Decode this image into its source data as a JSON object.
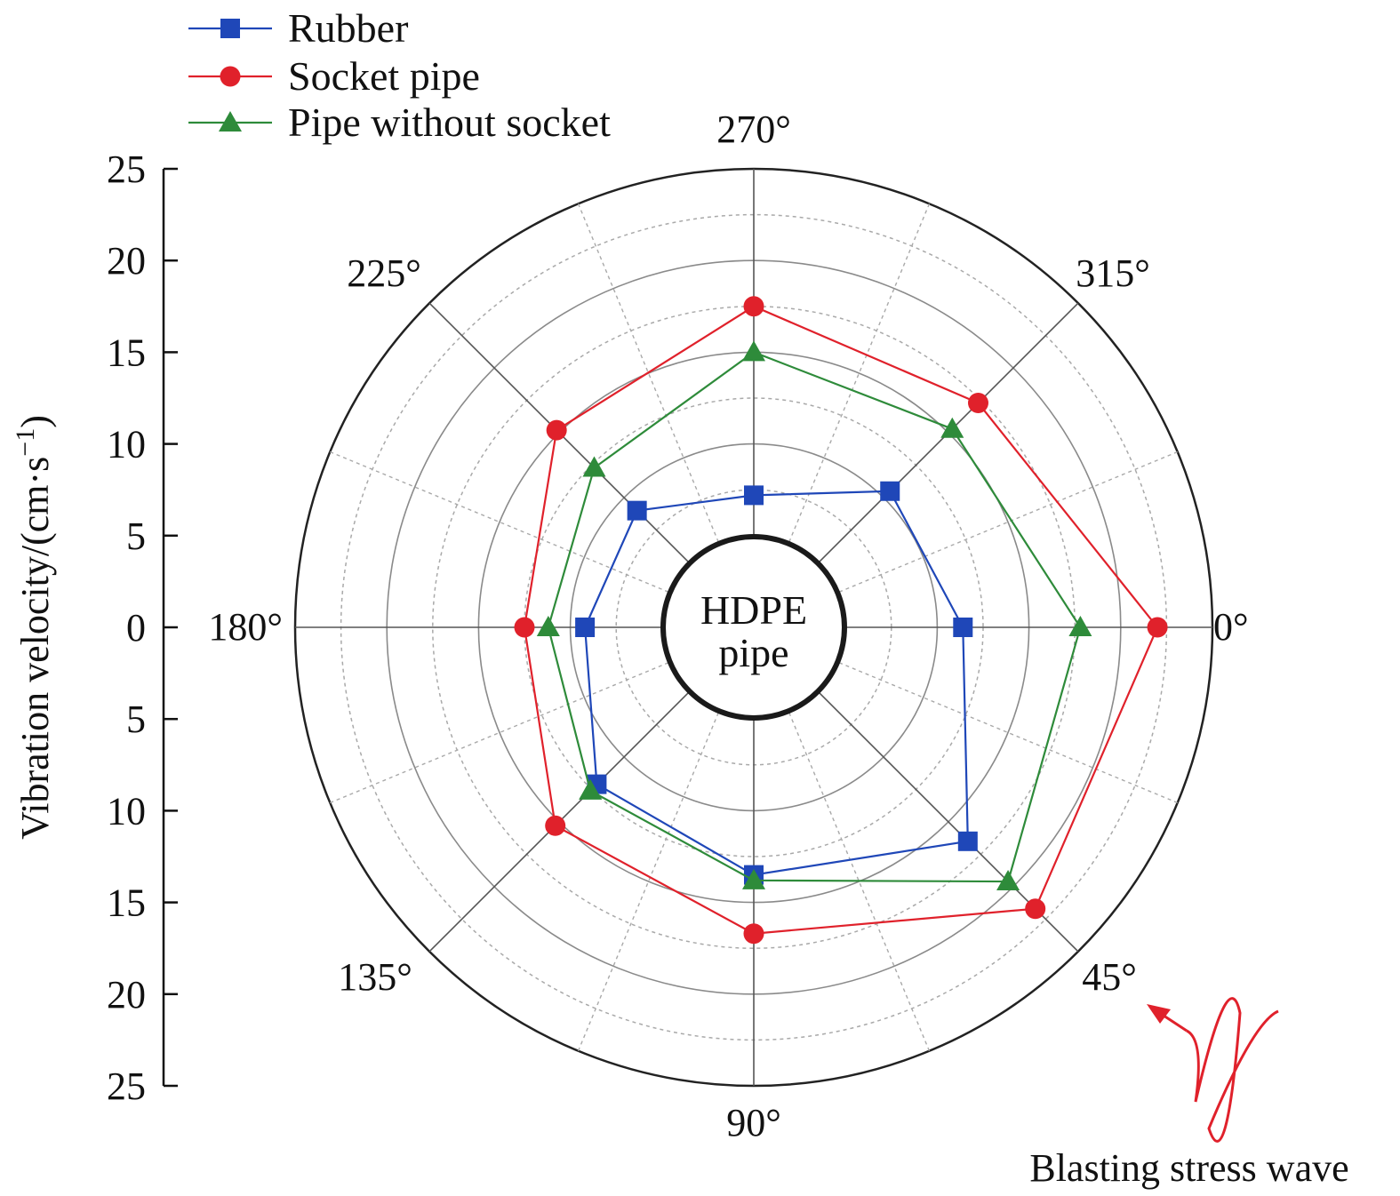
{
  "chart_data": {
    "type": "radar",
    "radial_axis": {
      "title": "Vibration velocity/(cm·s",
      "title_superscript": "−1",
      "title_suffix": ")",
      "range": [
        0,
        25
      ],
      "ticks_upper": [
        "25",
        "20",
        "15",
        "10",
        "5",
        "0"
      ],
      "ticks_lower": [
        "5",
        "10",
        "15",
        "20",
        "25"
      ],
      "tick_values": [
        25,
        20,
        15,
        10,
        5,
        0,
        5,
        10,
        15,
        20,
        25
      ],
      "circle_step": 2.5,
      "solid_circles": [
        5,
        10,
        15,
        20,
        25
      ],
      "dashed_circles": [
        2.5,
        7.5,
        12.5,
        17.5,
        22.5
      ]
    },
    "angles": [
      0,
      45,
      90,
      135,
      180,
      225,
      270,
      315
    ],
    "angle_labels": [
      "0°",
      "45°",
      "90°",
      "135°",
      "180°",
      "225°",
      "270°",
      "315°"
    ],
    "spoke_step_deg": 22.5,
    "series": [
      {
        "name": "Rubber",
        "color": "#1f47b8",
        "marker": "square",
        "angles": [
          0,
          45,
          90,
          135,
          180,
          225,
          270,
          315
        ],
        "values": [
          11.4,
          16.5,
          13.5,
          12.1,
          9.2,
          9.0,
          7.2,
          10.5
        ]
      },
      {
        "name": "Socket pipe",
        "color": "#e0212b",
        "marker": "circle",
        "angles": [
          0,
          45,
          90,
          135,
          180,
          225,
          270,
          315
        ],
        "values": [
          22.0,
          21.7,
          16.7,
          15.3,
          12.5,
          15.2,
          17.5,
          17.3
        ]
      },
      {
        "name": "Pipe without socket",
        "color": "#2e8b3a",
        "marker": "triangle",
        "angles": [
          0,
          45,
          90,
          135,
          180,
          225,
          270,
          315
        ],
        "values": [
          17.8,
          19.6,
          13.8,
          12.6,
          11.2,
          12.3,
          15.0,
          15.3
        ]
      }
    ],
    "legend_position": "top-left",
    "center_label": [
      "HDPE",
      "pipe"
    ],
    "annotation": "Blasting stress wave",
    "annotation_color": "#e0212b"
  }
}
